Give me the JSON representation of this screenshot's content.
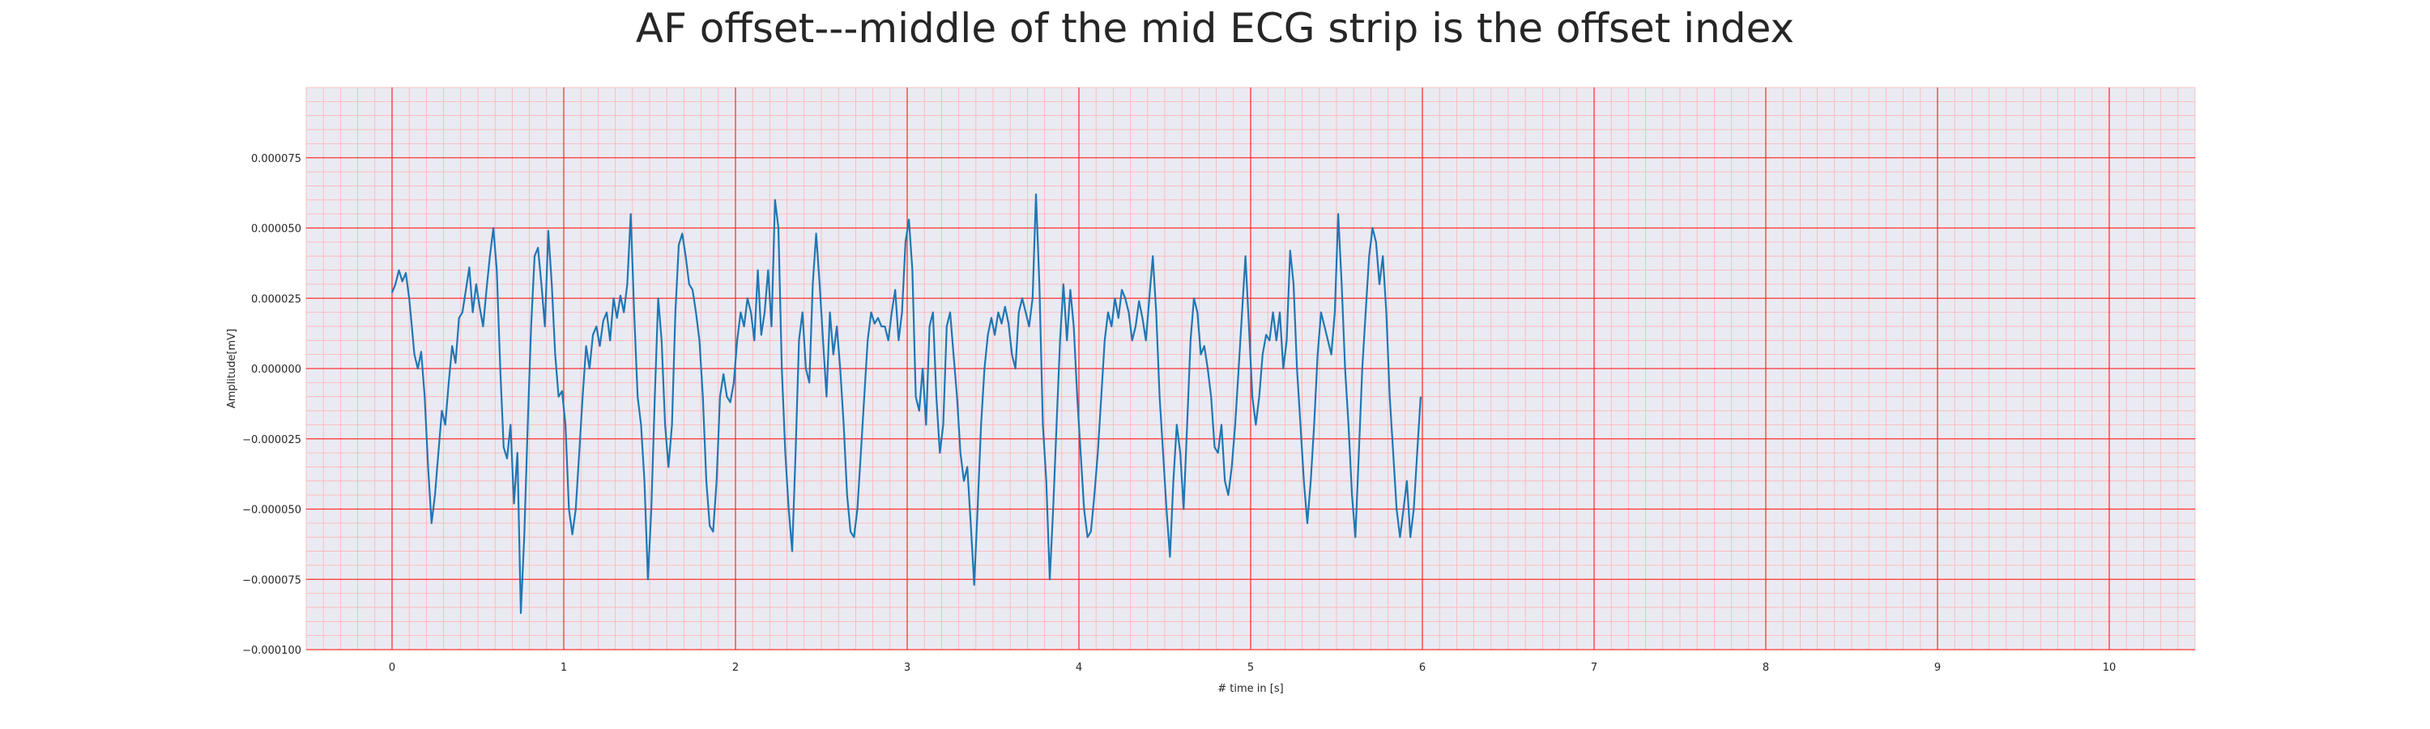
{
  "chart_data": {
    "type": "line",
    "title": "AF offset---middle of the mid ECG strip is the offset index",
    "xlabel": "# time in [s]",
    "ylabel": "Amplitude[mV]",
    "xlim": [
      -0.5,
      10.5
    ],
    "ylim": [
      -0.0001,
      0.0001
    ],
    "x_ticks": [
      0,
      1,
      2,
      3,
      4,
      5,
      6,
      7,
      8,
      9,
      10
    ],
    "x_tick_labels": [
      "0",
      "1",
      "2",
      "3",
      "4",
      "5",
      "6",
      "7",
      "8",
      "9",
      "10"
    ],
    "y_ticks": [
      -0.0001,
      -7.5e-05,
      -5e-05,
      -2.5e-05,
      0,
      2.5e-05,
      5e-05,
      7.5e-05
    ],
    "y_tick_labels": [
      "−0.000100",
      "−0.000075",
      "−0.000050",
      "−0.000025",
      "0.000000",
      "0.000025",
      "0.000050",
      "0.000075"
    ],
    "grid": true,
    "minor_grid": true,
    "colors": {
      "line": "#1f77b4",
      "background": "#eaeaf2",
      "major_grid": "#ff3333",
      "minor_grid": "#ffb3b3"
    },
    "series": [
      {
        "values": [
          [
            0.0,
            2.7e-05
          ],
          [
            0.02,
            3e-05
          ],
          [
            0.04,
            3.5e-05
          ],
          [
            0.06,
            3.1e-05
          ],
          [
            0.08,
            3.4e-05
          ],
          [
            0.1,
            2.5e-05
          ],
          [
            0.13,
            5e-06
          ],
          [
            0.15,
            0.0
          ],
          [
            0.17,
            6e-06
          ],
          [
            0.19,
            -1e-05
          ],
          [
            0.21,
            -3.5e-05
          ],
          [
            0.23,
            -5.5e-05
          ],
          [
            0.25,
            -4.5e-05
          ],
          [
            0.27,
            -3e-05
          ],
          [
            0.29,
            -1.5e-05
          ],
          [
            0.31,
            -2e-05
          ],
          [
            0.33,
            -5e-06
          ],
          [
            0.35,
            8e-06
          ],
          [
            0.37,
            2e-06
          ],
          [
            0.39,
            1.8e-05
          ],
          [
            0.41,
            2e-05
          ],
          [
            0.43,
            2.8e-05
          ],
          [
            0.45,
            3.6e-05
          ],
          [
            0.47,
            2e-05
          ],
          [
            0.49,
            3e-05
          ],
          [
            0.51,
            2.2e-05
          ],
          [
            0.53,
            1.5e-05
          ],
          [
            0.55,
            2.8e-05
          ],
          [
            0.57,
            4e-05
          ],
          [
            0.59,
            5e-05
          ],
          [
            0.61,
            3.5e-05
          ],
          [
            0.63,
            0.0
          ],
          [
            0.65,
            -2.8e-05
          ],
          [
            0.67,
            -3.2e-05
          ],
          [
            0.69,
            -2e-05
          ],
          [
            0.71,
            -4.8e-05
          ],
          [
            0.73,
            -3e-05
          ],
          [
            0.75,
            -8.7e-05
          ],
          [
            0.77,
            -6e-05
          ],
          [
            0.79,
            -2e-05
          ],
          [
            0.81,
            1.5e-05
          ],
          [
            0.83,
            4e-05
          ],
          [
            0.85,
            4.3e-05
          ],
          [
            0.87,
            3e-05
          ],
          [
            0.89,
            1.5e-05
          ],
          [
            0.91,
            4.9e-05
          ],
          [
            0.93,
            3e-05
          ],
          [
            0.95,
            5e-06
          ],
          [
            0.97,
            -1e-05
          ],
          [
            0.99,
            -8e-06
          ],
          [
            1.01,
            -2e-05
          ],
          [
            1.03,
            -5e-05
          ],
          [
            1.05,
            -5.9e-05
          ],
          [
            1.07,
            -5e-05
          ],
          [
            1.09,
            -3e-05
          ],
          [
            1.11,
            -1e-05
          ],
          [
            1.13,
            8e-06
          ],
          [
            1.15,
            0.0
          ],
          [
            1.17,
            1.2e-05
          ],
          [
            1.19,
            1.5e-05
          ],
          [
            1.21,
            8e-06
          ],
          [
            1.23,
            1.7e-05
          ],
          [
            1.25,
            2e-05
          ],
          [
            1.27,
            1e-05
          ],
          [
            1.29,
            2.5e-05
          ],
          [
            1.31,
            1.8e-05
          ],
          [
            1.33,
            2.6e-05
          ],
          [
            1.35,
            2e-05
          ],
          [
            1.37,
            3e-05
          ],
          [
            1.39,
            5.5e-05
          ],
          [
            1.41,
            2e-05
          ],
          [
            1.43,
            -1e-05
          ],
          [
            1.45,
            -2e-05
          ],
          [
            1.47,
            -4e-05
          ],
          [
            1.49,
            -7.5e-05
          ],
          [
            1.51,
            -5e-05
          ],
          [
            1.53,
            -1e-05
          ],
          [
            1.55,
            2.5e-05
          ],
          [
            1.57,
            1e-05
          ],
          [
            1.59,
            -2e-05
          ],
          [
            1.61,
            -3.5e-05
          ],
          [
            1.63,
            -2e-05
          ],
          [
            1.65,
            2e-05
          ],
          [
            1.67,
            4.4e-05
          ],
          [
            1.69,
            4.8e-05
          ],
          [
            1.71,
            4e-05
          ],
          [
            1.73,
            3e-05
          ],
          [
            1.75,
            2.8e-05
          ],
          [
            1.77,
            2e-05
          ],
          [
            1.79,
            1e-05
          ],
          [
            1.81,
            -1e-05
          ],
          [
            1.83,
            -4e-05
          ],
          [
            1.85,
            -5.6e-05
          ],
          [
            1.87,
            -5.8e-05
          ],
          [
            1.89,
            -4e-05
          ],
          [
            1.91,
            -1e-05
          ],
          [
            1.93,
            -2e-06
          ],
          [
            1.95,
            -1e-05
          ],
          [
            1.97,
            -1.2e-05
          ],
          [
            1.99,
            -5e-06
          ],
          [
            2.01,
            1e-05
          ],
          [
            2.03,
            2e-05
          ],
          [
            2.05,
            1.5e-05
          ],
          [
            2.07,
            2.5e-05
          ],
          [
            2.09,
            2e-05
          ],
          [
            2.11,
            1e-05
          ],
          [
            2.13,
            3.5e-05
          ],
          [
            2.15,
            1.2e-05
          ],
          [
            2.17,
            2e-05
          ],
          [
            2.19,
            3.5e-05
          ],
          [
            2.21,
            1.5e-05
          ],
          [
            2.23,
            6e-05
          ],
          [
            2.25,
            5e-05
          ],
          [
            2.27,
            0.0
          ],
          [
            2.29,
            -3e-05
          ],
          [
            2.31,
            -5e-05
          ],
          [
            2.33,
            -6.5e-05
          ],
          [
            2.35,
            -3e-05
          ],
          [
            2.37,
            1e-05
          ],
          [
            2.39,
            2e-05
          ],
          [
            2.41,
            0.0
          ],
          [
            2.43,
            -5e-06
          ],
          [
            2.45,
            3e-05
          ],
          [
            2.47,
            4.8e-05
          ],
          [
            2.49,
            3e-05
          ],
          [
            2.51,
            1e-05
          ],
          [
            2.53,
            -1e-05
          ],
          [
            2.55,
            2e-05
          ],
          [
            2.57,
            5e-06
          ],
          [
            2.59,
            1.5e-05
          ],
          [
            2.61,
            0.0
          ],
          [
            2.63,
            -2e-05
          ],
          [
            2.65,
            -4.5e-05
          ],
          [
            2.67,
            -5.8e-05
          ],
          [
            2.69,
            -6e-05
          ],
          [
            2.71,
            -5e-05
          ],
          [
            2.73,
            -3e-05
          ],
          [
            2.75,
            -1e-05
          ],
          [
            2.77,
            1e-05
          ],
          [
            2.79,
            2e-05
          ],
          [
            2.81,
            1.6e-05
          ],
          [
            2.83,
            1.8e-05
          ],
          [
            2.85,
            1.5e-05
          ],
          [
            2.87,
            1.5e-05
          ],
          [
            2.89,
            1e-05
          ],
          [
            2.91,
            2e-05
          ],
          [
            2.93,
            2.8e-05
          ],
          [
            2.95,
            1e-05
          ],
          [
            2.97,
            2e-05
          ],
          [
            2.99,
            4.5e-05
          ],
          [
            3.01,
            5.3e-05
          ],
          [
            3.03,
            3.5e-05
          ],
          [
            3.05,
            -1e-05
          ],
          [
            3.07,
            -1.5e-05
          ],
          [
            3.09,
            0.0
          ],
          [
            3.11,
            -2e-05
          ],
          [
            3.13,
            1.5e-05
          ],
          [
            3.15,
            2e-05
          ],
          [
            3.17,
            -1e-05
          ],
          [
            3.19,
            -3e-05
          ],
          [
            3.21,
            -2e-05
          ],
          [
            3.23,
            1.5e-05
          ],
          [
            3.25,
            2e-05
          ],
          [
            3.27,
            5e-06
          ],
          [
            3.29,
            -1e-05
          ],
          [
            3.31,
            -3e-05
          ],
          [
            3.33,
            -4e-05
          ],
          [
            3.35,
            -3.5e-05
          ],
          [
            3.37,
            -5.5e-05
          ],
          [
            3.39,
            -7.7e-05
          ],
          [
            3.41,
            -5e-05
          ],
          [
            3.43,
            -2e-05
          ],
          [
            3.45,
            0.0
          ],
          [
            3.47,
            1.2e-05
          ],
          [
            3.49,
            1.8e-05
          ],
          [
            3.51,
            1.2e-05
          ],
          [
            3.53,
            2e-05
          ],
          [
            3.55,
            1.6e-05
          ],
          [
            3.57,
            2.2e-05
          ],
          [
            3.59,
            1.6e-05
          ],
          [
            3.61,
            5e-06
          ],
          [
            3.63,
            0.0
          ],
          [
            3.65,
            2e-05
          ],
          [
            3.67,
            2.5e-05
          ],
          [
            3.69,
            2e-05
          ],
          [
            3.71,
            1.5e-05
          ],
          [
            3.73,
            2.5e-05
          ],
          [
            3.75,
            6.2e-05
          ],
          [
            3.77,
            3e-05
          ],
          [
            3.79,
            -2e-05
          ],
          [
            3.81,
            -4e-05
          ],
          [
            3.83,
            -7.5e-05
          ],
          [
            3.85,
            -5e-05
          ],
          [
            3.87,
            -2e-05
          ],
          [
            3.89,
            1e-05
          ],
          [
            3.91,
            3e-05
          ],
          [
            3.93,
            1e-05
          ],
          [
            3.95,
            2.8e-05
          ],
          [
            3.97,
            1.5e-05
          ],
          [
            3.99,
            -1e-05
          ],
          [
            4.01,
            -3e-05
          ],
          [
            4.03,
            -5e-05
          ],
          [
            4.05,
            -6e-05
          ],
          [
            4.07,
            -5.8e-05
          ],
          [
            4.09,
            -4.5e-05
          ],
          [
            4.11,
            -3e-05
          ],
          [
            4.13,
            -1e-05
          ],
          [
            4.15,
            1e-05
          ],
          [
            4.17,
            2e-05
          ],
          [
            4.19,
            1.5e-05
          ],
          [
            4.21,
            2.5e-05
          ],
          [
            4.23,
            1.8e-05
          ],
          [
            4.25,
            2.8e-05
          ],
          [
            4.27,
            2.5e-05
          ],
          [
            4.29,
            2e-05
          ],
          [
            4.31,
            1e-05
          ],
          [
            4.33,
            1.5e-05
          ],
          [
            4.35,
            2.4e-05
          ],
          [
            4.37,
            1.8e-05
          ],
          [
            4.39,
            1e-05
          ],
          [
            4.41,
            2.5e-05
          ],
          [
            4.43,
            4e-05
          ],
          [
            4.45,
            2e-05
          ],
          [
            4.47,
            -1e-05
          ],
          [
            4.49,
            -3e-05
          ],
          [
            4.51,
            -5e-05
          ],
          [
            4.53,
            -6.7e-05
          ],
          [
            4.55,
            -4e-05
          ],
          [
            4.57,
            -2e-05
          ],
          [
            4.59,
            -3e-05
          ],
          [
            4.61,
            -5e-05
          ],
          [
            4.63,
            -2e-05
          ],
          [
            4.65,
            1e-05
          ],
          [
            4.67,
            2.5e-05
          ],
          [
            4.69,
            2e-05
          ],
          [
            4.71,
            5e-06
          ],
          [
            4.73,
            8e-06
          ],
          [
            4.75,
            0.0
          ],
          [
            4.77,
            -1e-05
          ],
          [
            4.79,
            -2.8e-05
          ],
          [
            4.81,
            -3e-05
          ],
          [
            4.83,
            -2e-05
          ],
          [
            4.85,
            -4e-05
          ],
          [
            4.87,
            -4.5e-05
          ],
          [
            4.89,
            -3.5e-05
          ],
          [
            4.91,
            -2e-05
          ],
          [
            4.93,
            0.0
          ],
          [
            4.95,
            2e-05
          ],
          [
            4.97,
            4e-05
          ],
          [
            4.99,
            1.5e-05
          ],
          [
            5.01,
            -1e-05
          ],
          [
            5.03,
            -2e-05
          ],
          [
            5.05,
            -1e-05
          ],
          [
            5.07,
            5e-06
          ],
          [
            5.09,
            1.2e-05
          ],
          [
            5.11,
            1e-05
          ],
          [
            5.13,
            2e-05
          ],
          [
            5.15,
            1e-05
          ],
          [
            5.17,
            2e-05
          ],
          [
            5.19,
            0.0
          ],
          [
            5.21,
            1e-05
          ],
          [
            5.23,
            4.2e-05
          ],
          [
            5.25,
            3e-05
          ],
          [
            5.27,
            0.0
          ],
          [
            5.29,
            -2e-05
          ],
          [
            5.31,
            -4e-05
          ],
          [
            5.33,
            -5.5e-05
          ],
          [
            5.35,
            -4e-05
          ],
          [
            5.37,
            -2e-05
          ],
          [
            5.39,
            5e-06
          ],
          [
            5.41,
            2e-05
          ],
          [
            5.43,
            1.5e-05
          ],
          [
            5.45,
            1e-05
          ],
          [
            5.47,
            5e-06
          ],
          [
            5.49,
            2e-05
          ],
          [
            5.51,
            5.5e-05
          ],
          [
            5.53,
            3e-05
          ],
          [
            5.55,
            0.0
          ],
          [
            5.57,
            -2e-05
          ],
          [
            5.59,
            -4.5e-05
          ],
          [
            5.61,
            -6e-05
          ],
          [
            5.63,
            -3e-05
          ],
          [
            5.65,
            0.0
          ],
          [
            5.67,
            2e-05
          ],
          [
            5.69,
            4e-05
          ],
          [
            5.71,
            5e-05
          ],
          [
            5.73,
            4.5e-05
          ],
          [
            5.75,
            3e-05
          ],
          [
            5.77,
            4e-05
          ],
          [
            5.79,
            2e-05
          ],
          [
            5.81,
            -1e-05
          ],
          [
            5.83,
            -3e-05
          ],
          [
            5.85,
            -5e-05
          ],
          [
            5.87,
            -6e-05
          ],
          [
            5.89,
            -5e-05
          ],
          [
            5.91,
            -4e-05
          ],
          [
            5.93,
            -6e-05
          ],
          [
            5.95,
            -5e-05
          ],
          [
            5.97,
            -3e-05
          ],
          [
            5.99,
            -1e-05
          ]
        ]
      }
    ]
  }
}
